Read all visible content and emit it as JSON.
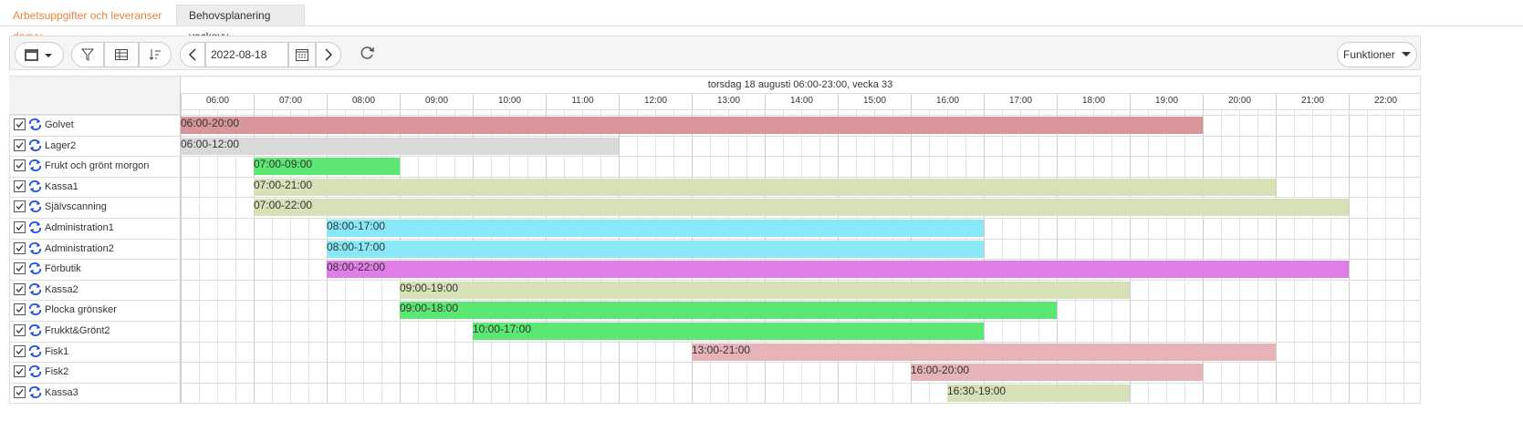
{
  "tabs": [
    "Arbetsuppgifter och leveranser dagvy",
    "Behovsplanering veckovy"
  ],
  "toolbar": {
    "date": "2022-08-18",
    "functions": "Funktioner"
  },
  "schedule": {
    "title": "torsdag 18 augusti 06:00-23:00, vecka 33",
    "hours": [
      "06:00",
      "07:00",
      "08:00",
      "09:00",
      "10:00",
      "11:00",
      "12:00",
      "13:00",
      "14:00",
      "15:00",
      "16:00",
      "17:00",
      "18:00",
      "19:00",
      "20:00",
      "21:00",
      "22:00"
    ],
    "rows": [
      {
        "name": "Golvet",
        "label": "06:00-20:00",
        "color": "#d9969a"
      },
      {
        "name": "Lager2",
        "label": "06:00-12:00",
        "color": "#d9d9d9"
      },
      {
        "name": "Frukt och grönt morgon",
        "label": "07:00-09:00",
        "color": "#5ce672"
      },
      {
        "name": "Kassa1",
        "label": "07:00-21:00",
        "color": "#d6e1b8"
      },
      {
        "name": "Självscanning",
        "label": "07:00-22:00",
        "color": "#d6e1b8"
      },
      {
        "name": "Administration1",
        "label": "08:00-17:00",
        "color": "#88e8f8"
      },
      {
        "name": "Administration2",
        "label": "08:00-17:00",
        "color": "#88e8f8"
      },
      {
        "name": "Förbutik",
        "label": "08:00-22:00",
        "color": "#e07de6"
      },
      {
        "name": "Kassa2",
        "label": "09:00-19:00",
        "color": "#d6e1b8"
      },
      {
        "name": "Plocka grönsker",
        "label": "09:00-18:00",
        "color": "#5ce672"
      },
      {
        "name": "Frukkt&Grönt2",
        "label": "10:00-17:00",
        "color": "#5ce672"
      },
      {
        "name": "Fisk1",
        "label": "13:00-21:00",
        "color": "#e6b4b6"
      },
      {
        "name": "Fisk2",
        "label": "16:00-20:00",
        "color": "#e6b4b6"
      },
      {
        "name": "Kassa3",
        "label": "16:30-19:00",
        "color": "#d6e1b8"
      }
    ]
  }
}
